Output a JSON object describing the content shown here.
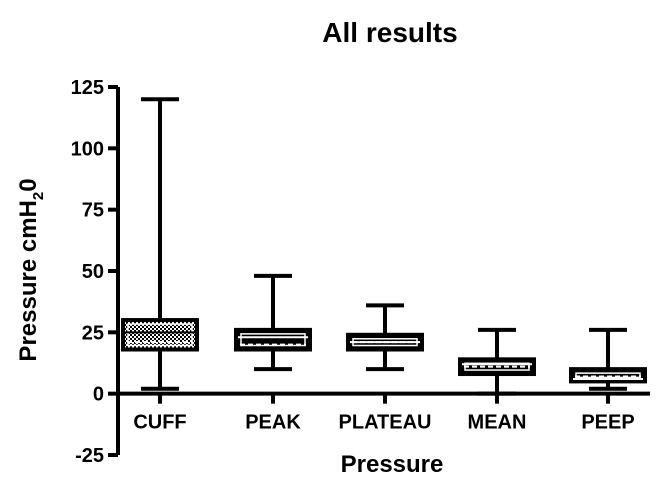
{
  "chart_data": {
    "type": "box",
    "title": "All results",
    "xlabel": "Pressure",
    "ylabel_main": "Pressure cmH",
    "ylabel_sub": "2",
    "ylabel_tail": "0",
    "ylim": [
      -25,
      125
    ],
    "yticks": [
      -25,
      0,
      25,
      50,
      75,
      100,
      125
    ],
    "categories": [
      "CUFF",
      "PEAK",
      "PLATEAU",
      "MEAN",
      "PEEP"
    ],
    "boxes": [
      {
        "name": "CUFF",
        "min": 2,
        "q1": 18,
        "median": 25,
        "mean": 21,
        "q3": 30,
        "max": 120,
        "fill": "checker"
      },
      {
        "name": "PEAK",
        "min": 10,
        "q1": 18,
        "median": 23,
        "mean": 20,
        "q3": 26,
        "max": 48,
        "fill": "black"
      },
      {
        "name": "PLATEAU",
        "min": 10,
        "q1": 18,
        "median": 21,
        "mean": 21,
        "q3": 24,
        "max": 36,
        "fill": "black"
      },
      {
        "name": "MEAN",
        "min": 0,
        "q1": 8,
        "median": 12,
        "mean": 11,
        "q3": 14,
        "max": 26,
        "fill": "black"
      },
      {
        "name": "PEEP",
        "min": 2,
        "q1": 5,
        "median": 6,
        "mean": 7,
        "q3": 10,
        "max": 26,
        "fill": "black"
      }
    ]
  }
}
